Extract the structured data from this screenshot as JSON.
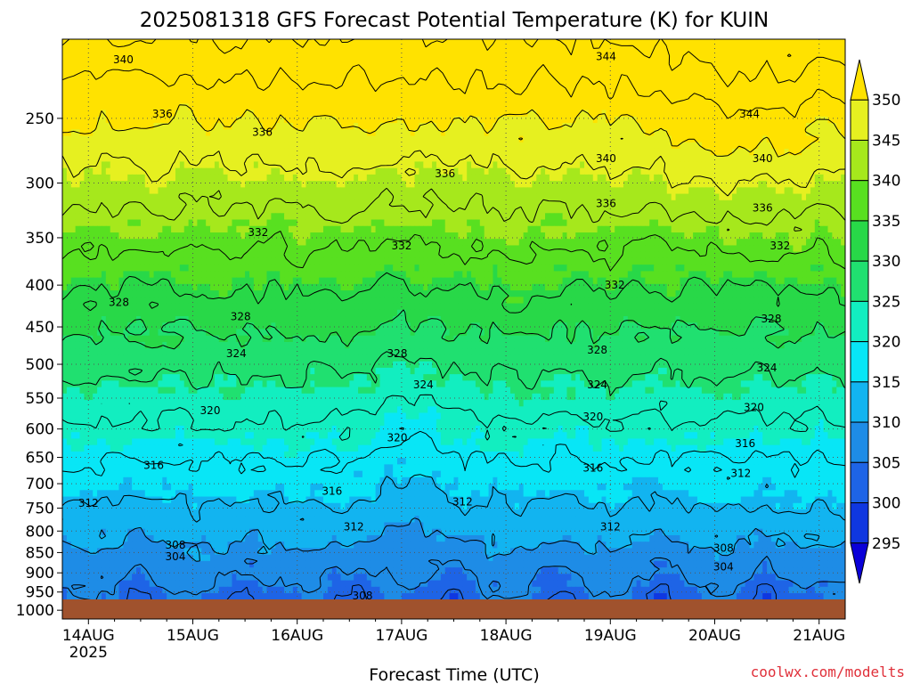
{
  "chart_data": {
    "type": "heatmap",
    "title": "2025081318 GFS Forecast Potential Temperature (K) for KUIN",
    "xlabel": "Forecast Time (UTC)",
    "ylabel": "",
    "credit": "coolwx.com/modelts",
    "x_ticks": [
      {
        "label": "14AUG",
        "sublabel": "2025",
        "t": 0
      },
      {
        "label": "15AUG",
        "t": 24
      },
      {
        "label": "16AUG",
        "t": 48
      },
      {
        "label": "17AUG",
        "t": 72
      },
      {
        "label": "18AUG",
        "t": 96
      },
      {
        "label": "19AUG",
        "t": 120
      },
      {
        "label": "20AUG",
        "t": 144
      },
      {
        "label": "21AUG",
        "t": 168
      }
    ],
    "x_range_hours": [
      -6,
      174
    ],
    "y_axis": {
      "scale": "log-pressure",
      "units": "hPa",
      "range": [
        1025,
        200
      ],
      "ticks": [
        250,
        300,
        350,
        400,
        450,
        500,
        550,
        600,
        650,
        700,
        750,
        800,
        850,
        900,
        950,
        1000
      ]
    },
    "colorbar": {
      "levels": [
        295,
        300,
        305,
        310,
        315,
        320,
        325,
        330,
        335,
        340,
        345,
        350
      ],
      "colors": [
        "#0a00d8",
        "#0f37e0",
        "#1e64e6",
        "#1e8ce6",
        "#12b4f0",
        "#08e6f6",
        "#12eec0",
        "#20e070",
        "#28d848",
        "#58e020",
        "#a6e81c",
        "#e6f020",
        "#ffe200"
      ],
      "labels": [
        "295",
        "300",
        "305",
        "310",
        "315",
        "320",
        "325",
        "330",
        "335",
        "340",
        "345",
        "350"
      ]
    },
    "contour_interval": 4,
    "contour_labels": [
      {
        "value": "340",
        "t": 8,
        "p": 212
      },
      {
        "value": "336",
        "t": 17,
        "p": 247
      },
      {
        "value": "336",
        "t": 40,
        "p": 260
      },
      {
        "value": "332",
        "t": 39,
        "p": 345
      },
      {
        "value": "332",
        "t": 72,
        "p": 358
      },
      {
        "value": "336",
        "t": 82,
        "p": 292
      },
      {
        "value": "344",
        "t": 119,
        "p": 210
      },
      {
        "value": "340",
        "t": 119,
        "p": 280
      },
      {
        "value": "336",
        "t": 119,
        "p": 318
      },
      {
        "value": "332",
        "t": 121,
        "p": 400
      },
      {
        "value": "344",
        "t": 152,
        "p": 247
      },
      {
        "value": "340",
        "t": 155,
        "p": 280
      },
      {
        "value": "336",
        "t": 155,
        "p": 322
      },
      {
        "value": "332",
        "t": 159,
        "p": 358
      },
      {
        "value": "328",
        "t": 7,
        "p": 420
      },
      {
        "value": "328",
        "t": 35,
        "p": 437
      },
      {
        "value": "328",
        "t": 71,
        "p": 485
      },
      {
        "value": "328",
        "t": 117,
        "p": 480
      },
      {
        "value": "328",
        "t": 157,
        "p": 440
      },
      {
        "value": "324",
        "t": 34,
        "p": 485
      },
      {
        "value": "324",
        "t": 77,
        "p": 530
      },
      {
        "value": "324",
        "t": 117,
        "p": 530
      },
      {
        "value": "324",
        "t": 156,
        "p": 505
      },
      {
        "value": "320",
        "t": 28,
        "p": 570
      },
      {
        "value": "320",
        "t": 71,
        "p": 615
      },
      {
        "value": "320",
        "t": 116,
        "p": 580
      },
      {
        "value": "320",
        "t": 153,
        "p": 565
      },
      {
        "value": "316",
        "t": 15,
        "p": 665
      },
      {
        "value": "316",
        "t": 56,
        "p": 715
      },
      {
        "value": "316",
        "t": 116,
        "p": 670
      },
      {
        "value": "316",
        "t": 151,
        "p": 625
      },
      {
        "value": "312",
        "t": 0,
        "p": 740
      },
      {
        "value": "312",
        "t": 61,
        "p": 790
      },
      {
        "value": "312",
        "t": 86,
        "p": 737
      },
      {
        "value": "312",
        "t": 120,
        "p": 790
      },
      {
        "value": "312",
        "t": 150,
        "p": 680
      },
      {
        "value": "308",
        "t": 20,
        "p": 832
      },
      {
        "value": "304",
        "t": 20,
        "p": 860
      },
      {
        "value": "308",
        "t": 63,
        "p": 960
      },
      {
        "value": "308",
        "t": 146,
        "p": 840
      },
      {
        "value": "304",
        "t": 146,
        "p": 885
      }
    ]
  }
}
